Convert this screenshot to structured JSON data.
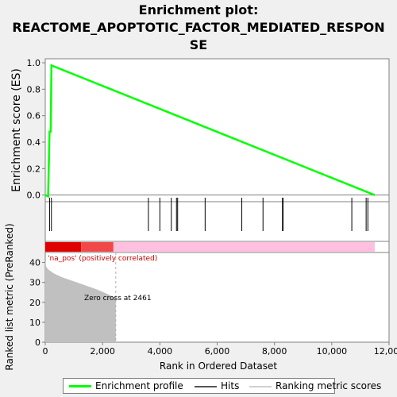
{
  "title_lines": [
    "Enrichment plot:",
    "REACTOME_APOPTOTIC_FACTOR_MEDIATED_RESPON",
    "SE"
  ],
  "colors": {
    "enrichment_line": "#00ff00",
    "hits": "#000000",
    "ranking_fill": "#c0c0c0",
    "bar_red": "#e00000",
    "bar_light_red": "#f04848",
    "bar_pink": "#ffc0e0",
    "pos_label": "#cc0000"
  },
  "legend": {
    "enrichment_profile": "Enrichment profile",
    "hits": "Hits",
    "ranking_metric": "Ranking metric scores"
  },
  "chart_data": [
    {
      "type": "line",
      "name": "enrichment-score",
      "ylabel": "Enrichment score (ES)",
      "xlim": [
        0,
        12000
      ],
      "ylim": [
        -0.05,
        1.03
      ],
      "yticks": [
        0.0,
        0.2,
        0.4,
        0.6,
        0.8,
        1.0
      ],
      "ytick_labels": [
        "0.0",
        "0.2",
        "0.4",
        "0.6",
        "0.8",
        "1.0"
      ],
      "grid": false,
      "series": [
        {
          "name": "Enrichment profile",
          "x": [
            0,
            100,
            150,
            190,
            215,
            11500
          ],
          "y": [
            0.0,
            -0.01,
            0.48,
            0.48,
            0.98,
            0.0
          ]
        }
      ]
    },
    {
      "type": "scatter",
      "name": "hits",
      "hits_x": [
        150,
        215,
        3600,
        4000,
        4400,
        4580,
        4620,
        5580,
        6860,
        7600,
        8280,
        8300,
        10700,
        11200,
        11260
      ]
    },
    {
      "type": "area",
      "name": "ranking-metric",
      "xlabel": "Rank in Ordered Dataset",
      "ylabel": "Ranked list metric (PreRanked)",
      "xlim": [
        0,
        12000
      ],
      "ylim": [
        0,
        45
      ],
      "xticks": [
        0,
        2000,
        4000,
        6000,
        8000,
        10000,
        12000
      ],
      "xtick_labels": [
        "0",
        "2,000",
        "4,000",
        "6,000",
        "8,000",
        "10,000",
        "12,000"
      ],
      "yticks": [
        0,
        10,
        20,
        30,
        40
      ],
      "ytick_labels": [
        "0",
        "10",
        "20",
        "30",
        "40"
      ],
      "x": [
        0,
        30,
        100,
        300,
        600,
        1000,
        1400,
        1800,
        2200,
        2461
      ],
      "y": [
        41,
        38,
        36.5,
        34.5,
        32.5,
        30.5,
        28.5,
        26.5,
        24,
        22
      ],
      "annotations": [
        "'na_pos' (positively correlated)",
        "Zero cross at 2461"
      ],
      "zero_cross": 2461,
      "color_bar": [
        {
          "from": 0,
          "to": 1250,
          "color": "#e00000"
        },
        {
          "from": 1250,
          "to": 2380,
          "color": "#f04848"
        },
        {
          "from": 2380,
          "to": 11500,
          "color": "#ffc0e0"
        }
      ]
    }
  ]
}
